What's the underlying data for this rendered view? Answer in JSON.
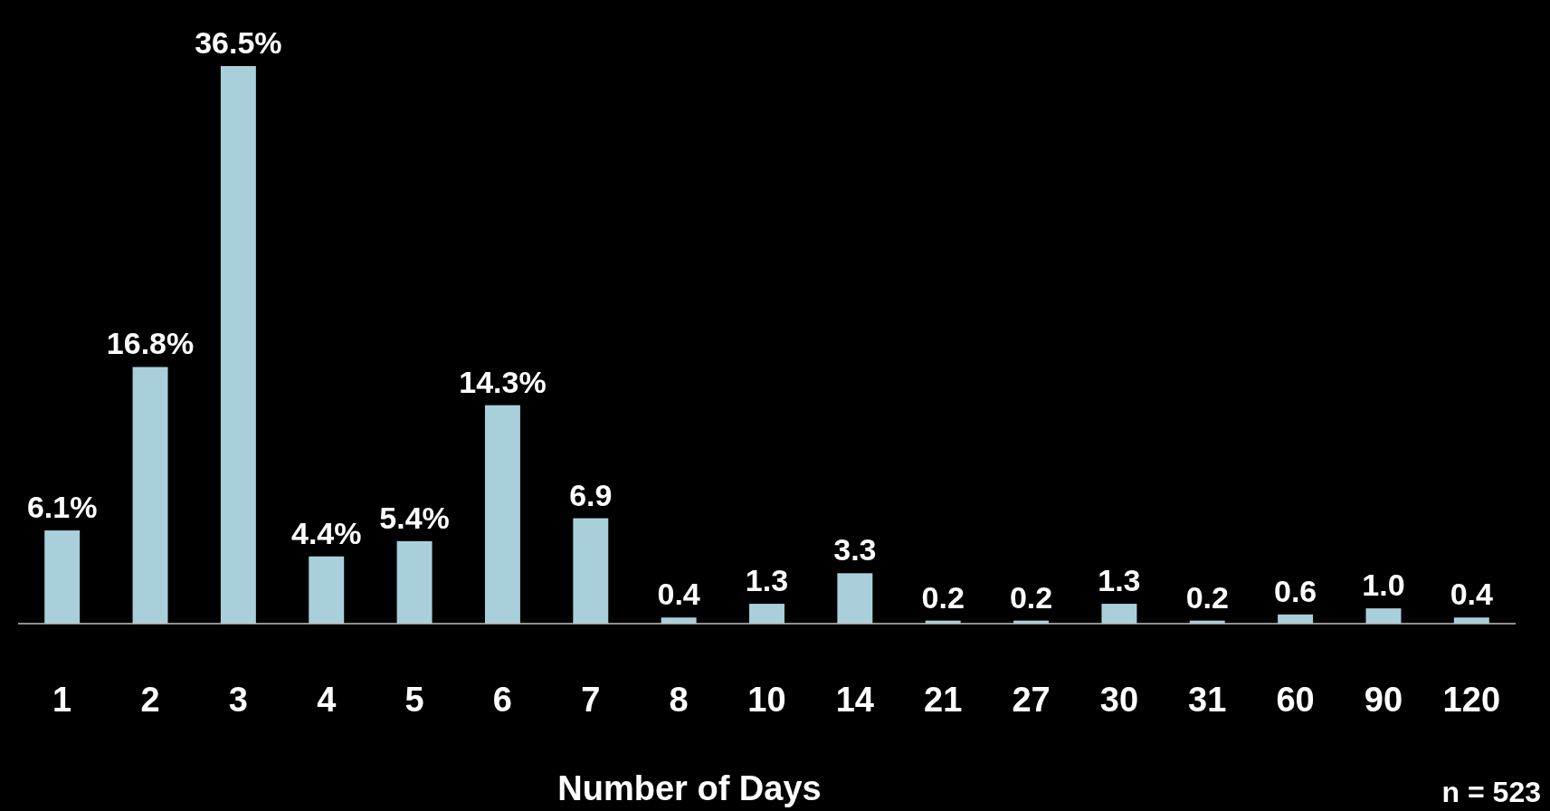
{
  "chart_data": {
    "type": "bar",
    "xlabel": "Number of Days",
    "categories": [
      "1",
      "2",
      "3",
      "4",
      "5",
      "6",
      "7",
      "8",
      "10",
      "14",
      "21",
      "27",
      "30",
      "31",
      "60",
      "90",
      "120"
    ],
    "values": [
      6.1,
      16.8,
      36.5,
      4.4,
      5.4,
      14.3,
      6.9,
      0.4,
      1.3,
      3.3,
      0.2,
      0.2,
      1.3,
      0.2,
      0.6,
      1.0,
      0.4
    ],
    "value_labels": [
      "6.1%",
      "16.8%",
      "36.5%",
      "4.4%",
      "5.4%",
      "14.3%",
      "6.9",
      "0.4",
      "1.3",
      "3.3",
      "0.2",
      "0.2",
      "1.3",
      "0.2",
      "0.6",
      "1.0",
      "0.4"
    ],
    "color": "#a9cfdb",
    "annotations": [
      "n = 523"
    ]
  }
}
